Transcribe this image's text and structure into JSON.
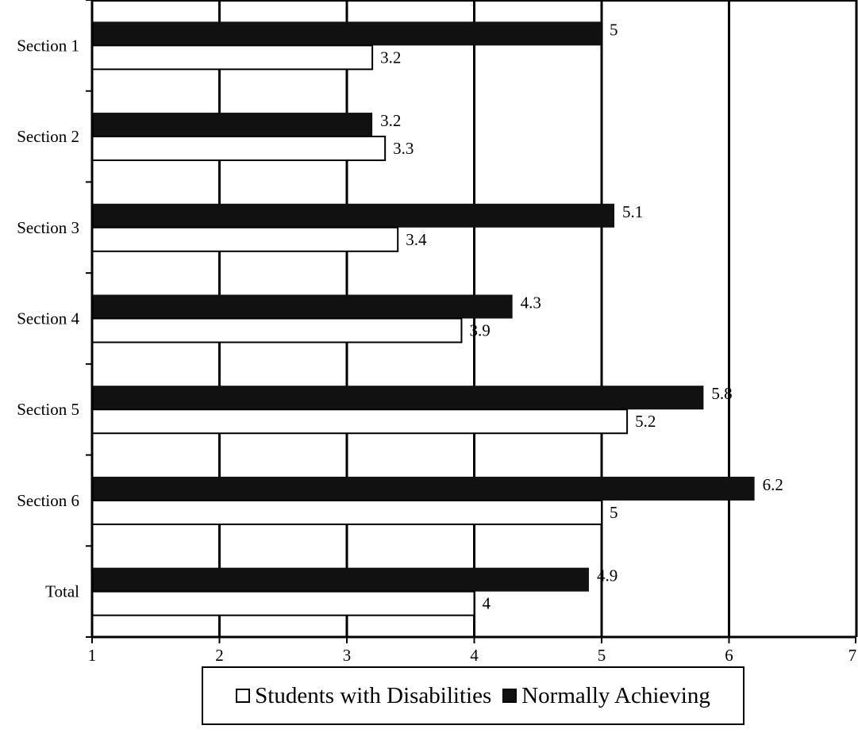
{
  "chart_data": {
    "type": "bar",
    "orientation": "horizontal",
    "title": "",
    "xlabel": "",
    "ylabel": "",
    "categories": [
      "Section 1",
      "Section 2",
      "Section 3",
      "Section 4",
      "Section 5",
      "Section 6",
      "Total"
    ],
    "series": [
      {
        "name": "Normally Achieving",
        "values": [
          5,
          3.2,
          5.1,
          4.3,
          5.8,
          6.2,
          4.9
        ],
        "value_labels": [
          "5",
          "3.2",
          "5.1",
          "4.3",
          "5.8",
          "6.2",
          "4.9"
        ],
        "color": "#111111"
      },
      {
        "name": "Students with Disabilities",
        "values": [
          3.2,
          3.3,
          3.4,
          3.9,
          5.2,
          5,
          4
        ],
        "value_labels": [
          "3.2",
          "3.3",
          "3.4",
          "3.9",
          "5.2",
          "5",
          "4"
        ],
        "color": "#ffffff"
      }
    ],
    "xlim": [
      1,
      7
    ],
    "xticks": [
      "1",
      "2",
      "3",
      "4",
      "5",
      "6",
      "7"
    ],
    "grid": "vertical",
    "legend_position": "bottom"
  },
  "legend": {
    "disabilities_label": "Students with Disabilities",
    "normal_label": "Normally Achieving"
  }
}
